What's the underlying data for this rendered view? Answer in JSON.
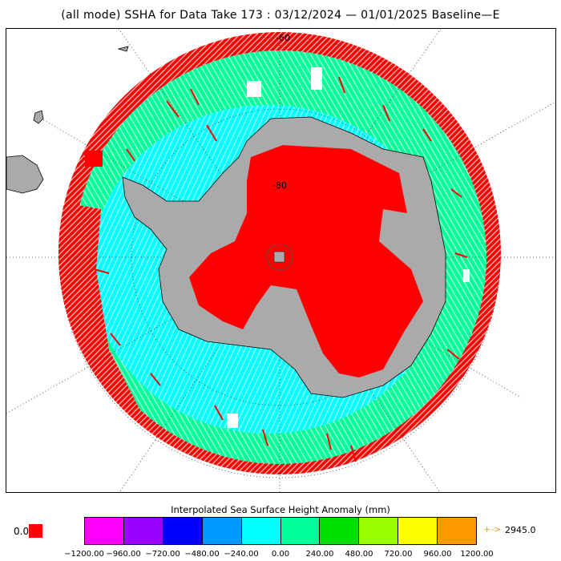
{
  "title": "(all mode) SSHA for Data Take 173 : 03/12/2024 — 01/01/2025 Baseline—E",
  "map": {
    "projection": "south-polar-stereographic",
    "latitude_labels": [
      "-60",
      "-80"
    ],
    "land_color": "#aaaaaa",
    "ocean_background": "#ffffff",
    "dominant_anomaly_colors": [
      "#00ffff",
      "#00ff99",
      "#ff0000"
    ]
  },
  "legend": {
    "title": "Interpolated Sea Surface Height Anomaly (mm)",
    "colors": [
      "#ff00ff",
      "#9900ff",
      "#0000ff",
      "#0099ff",
      "#00ffff",
      "#00ff99",
      "#00e000",
      "#99ff00",
      "#ffff00",
      "#ff9900"
    ],
    "ticks": [
      "−1200.00",
      "−960.00",
      "−720.00",
      "−480.00",
      "−240.00",
      "0.00",
      "240.00",
      "480.00",
      "720.00",
      "960.00",
      "1200.00"
    ],
    "land_label": "0.0",
    "land_swatch_color": "#ff0000",
    "overflow_arrow": "+->",
    "overflow_value": "2945.0"
  }
}
